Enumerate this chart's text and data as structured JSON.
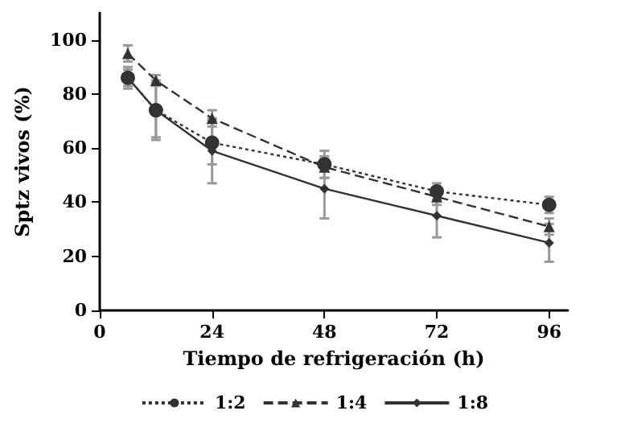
{
  "chart_data": {
    "type": "line",
    "xlabel": "Tiempo de refrigeración (h)",
    "ylabel": "Sptz vivos (%)",
    "x": [
      6,
      12,
      24,
      48,
      72,
      96
    ],
    "xlim": [
      0,
      100
    ],
    "xticks": [
      0,
      24,
      48,
      72,
      96
    ],
    "ylim": [
      0,
      110
    ],
    "yticks": [
      0,
      20,
      40,
      60,
      80,
      100
    ],
    "grid": false,
    "legend": "bottom",
    "series": [
      {
        "name": "1:2",
        "color": "#333333",
        "marker": "circle",
        "line_style": "dotted",
        "values": [
          86,
          74,
          62,
          54,
          44,
          39
        ],
        "errors": [
          3,
          10,
          8,
          5,
          3,
          3
        ]
      },
      {
        "name": "1:4",
        "color": "#333333",
        "marker": "triangle",
        "line_style": "dashed",
        "values": [
          95,
          85,
          71,
          53,
          42,
          31
        ],
        "errors": [
          3,
          2,
          3,
          4,
          3,
          3
        ]
      },
      {
        "name": "1:8",
        "color": "#333333",
        "marker": "diamond",
        "line_style": "solid",
        "values": [
          86,
          74,
          59,
          45,
          35,
          25
        ],
        "errors": [
          4,
          11,
          12,
          11,
          8,
          7
        ]
      }
    ]
  }
}
